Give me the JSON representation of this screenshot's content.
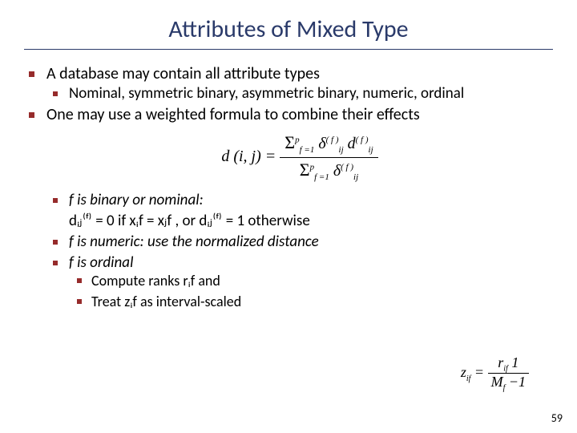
{
  "title": "Attributes of Mixed Type",
  "bullets": {
    "b1": "A database may contain all attribute types",
    "b1a": "Nominal, symmetric binary, asymmetric binary, numeric, ordinal",
    "b2": "One may use a weighted formula to combine their effects",
    "b3": "f  is binary or nominal:",
    "b3line": "dᵢⱼ⁽ᶠ⁾ = 0  if xᵢf = xⱼf , or dᵢⱼ⁽ᶠ⁾ = 1 otherwise",
    "b4": "f  is numeric: use the normalized distance",
    "b5": "f  is ordinal",
    "b5a": "Compute ranks rᵢf and",
    "b5b": "Treat zᵢf as interval-scaled"
  },
  "formula_main": {
    "lhs": "d (i, j) =",
    "num_sum": "Σ",
    "num_sub": "f =1",
    "num_sup": "p",
    "num_d1": "δ",
    "num_d1_sup": "( f )",
    "num_d1_sub": "ij",
    "num_d2": "d",
    "num_d2_sup": "( f )",
    "num_d2_sub": "ij",
    "den_sum": "Σ",
    "den_sub": "f =1",
    "den_sup": "p",
    "den_d": "δ",
    "den_d_sup": "( f )",
    "den_d_sub": "ij"
  },
  "formula_side": {
    "lhs": "z",
    "lhs_sub": "if",
    "eq": " = ",
    "num": "r",
    "num_sub": "if",
    "num_tail": " 1",
    "den": "M",
    "den_sub": "f",
    "den_tail": " −1"
  },
  "pagenum": "59",
  "colors": {
    "title": "#2a3a6a",
    "bullet": "#962b2b",
    "text": "#000000",
    "bg": "#ffffff"
  }
}
